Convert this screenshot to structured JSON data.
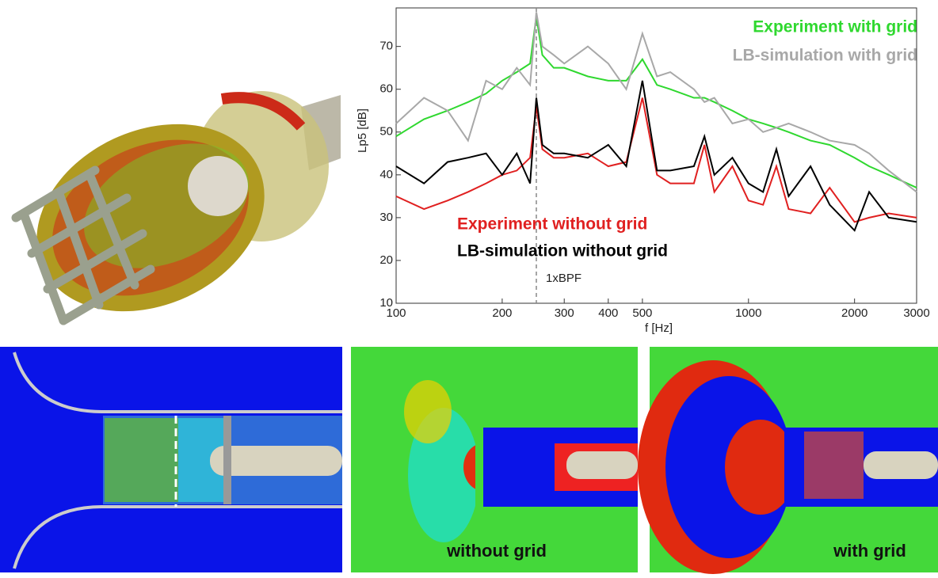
{
  "chart_data": {
    "type": "line",
    "xlabel": "f [Hz]",
    "ylabel": "Lp5 [dB]",
    "xscale": "log",
    "xlim": [
      100,
      3000
    ],
    "xticks": [
      100,
      200,
      300,
      400,
      500,
      1000,
      2000,
      3000
    ],
    "ylim": [
      10,
      79
    ],
    "yticks": [
      10,
      20,
      30,
      40,
      50,
      60,
      70
    ],
    "x": [
      100,
      120,
      140,
      160,
      180,
      200,
      220,
      240,
      250,
      260,
      280,
      300,
      350,
      400,
      450,
      500,
      550,
      600,
      700,
      750,
      800,
      900,
      1000,
      1100,
      1200,
      1300,
      1500,
      1700,
      2000,
      2200,
      2500,
      3000
    ],
    "series": [
      {
        "name": "Experiment with grid",
        "color": "#2fd82f",
        "values": [
          49,
          53,
          55,
          57,
          59,
          62,
          64,
          66,
          77,
          68,
          65,
          65,
          63,
          62,
          62,
          67,
          61,
          60,
          58,
          58,
          57,
          55,
          53,
          52,
          51,
          50,
          48,
          47,
          44,
          42,
          40,
          37
        ]
      },
      {
        "name": "LB-simulation with grid",
        "color": "#a8a8a8",
        "values": [
          52,
          58,
          55,
          48,
          62,
          60,
          65,
          61,
          78,
          70,
          68,
          66,
          70,
          66,
          60,
          73,
          63,
          64,
          60,
          57,
          58,
          52,
          53,
          50,
          51,
          52,
          50,
          48,
          47,
          45,
          41,
          36
        ]
      },
      {
        "name": "Experiment without grid",
        "color": "#e02020",
        "values": [
          35,
          32,
          34,
          36,
          38,
          40,
          41,
          44,
          56,
          46,
          44,
          44,
          45,
          42,
          43,
          58,
          40,
          38,
          38,
          47,
          36,
          42,
          34,
          33,
          42,
          32,
          31,
          37,
          29,
          30,
          31,
          30
        ]
      },
      {
        "name": "LB-simulation without grid",
        "color": "#000000",
        "values": [
          42,
          38,
          43,
          44,
          45,
          40,
          45,
          38,
          58,
          47,
          45,
          45,
          44,
          47,
          42,
          62,
          41,
          41,
          42,
          49,
          40,
          44,
          38,
          36,
          46,
          35,
          42,
          33,
          27,
          36,
          30,
          29
        ]
      }
    ],
    "annotation": {
      "text": "1xBPF",
      "x": 250
    }
  },
  "panels": [
    {
      "label": "without grid"
    },
    {
      "label": "with grid"
    }
  ]
}
